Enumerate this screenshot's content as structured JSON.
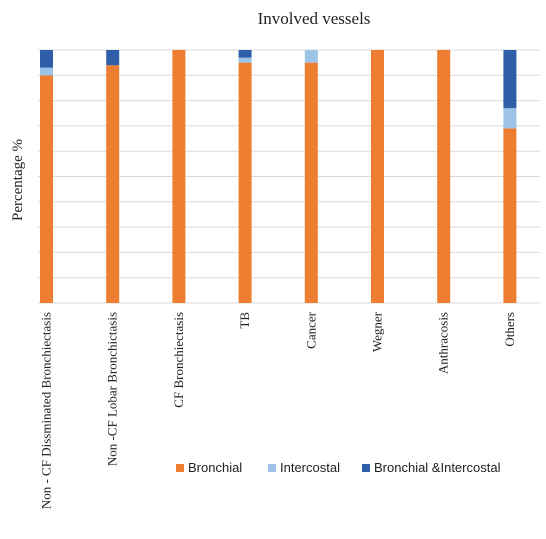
{
  "chart_data": {
    "type": "bar",
    "stacked": true,
    "title": "Involved vessels",
    "xlabel": "",
    "ylabel": "Percentage %",
    "ylim": [
      0,
      100
    ],
    "grid": true,
    "legend_position": "bottom-right",
    "categories": [
      "Non - CF Dissminated Bronchiectasis",
      "Non -CF Lobar Bronchictasis",
      "CF Bronchiectasis",
      "TB",
      "Cancer",
      "Wegner",
      "Anthracosis",
      "Others"
    ],
    "series": [
      {
        "name": "Bronchial",
        "color": "#ed7d31",
        "values": [
          90,
          94,
          100,
          95,
          95,
          100,
          100,
          69
        ]
      },
      {
        "name": "Intercostal",
        "color": "#9dc3e6",
        "values": [
          3,
          0,
          0,
          2,
          5,
          0,
          0,
          8
        ]
      },
      {
        "name": "Bronchial &Intercostal",
        "color": "#2e5fa8",
        "values": [
          7,
          6,
          0,
          3,
          0,
          0,
          0,
          23
        ]
      }
    ]
  }
}
